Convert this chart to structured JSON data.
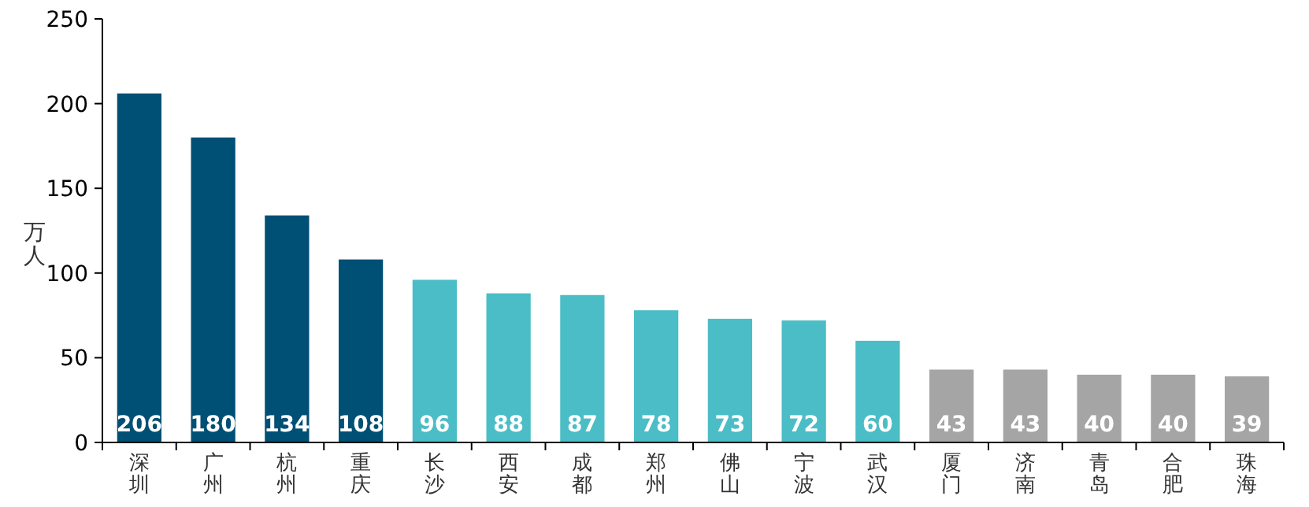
{
  "chart_data": {
    "type": "bar",
    "ylabel": "万人",
    "categories": [
      "深圳",
      "广州",
      "杭州",
      "重庆",
      "长沙",
      "西安",
      "成都",
      "郑州",
      "佛山",
      "宁波",
      "武汉",
      "厦门",
      "济南",
      "青岛",
      "合肥",
      "珠海"
    ],
    "values": [
      206,
      180,
      134,
      108,
      96,
      88,
      87,
      78,
      73,
      72,
      60,
      43,
      43,
      40,
      40,
      39
    ],
    "colors": [
      "#004f74",
      "#004f74",
      "#004f74",
      "#004f74",
      "#4bbdc6",
      "#4bbdc6",
      "#4bbdc6",
      "#4bbdc6",
      "#4bbdc6",
      "#4bbdc6",
      "#4bbdc6",
      "#a5a5a5",
      "#a5a5a5",
      "#a5a5a5",
      "#a5a5a5",
      "#a5a5a5"
    ],
    "ylim": [
      0,
      250
    ],
    "yticks": [
      0,
      50,
      100,
      150,
      200,
      250
    ],
    "data_labels": true
  }
}
